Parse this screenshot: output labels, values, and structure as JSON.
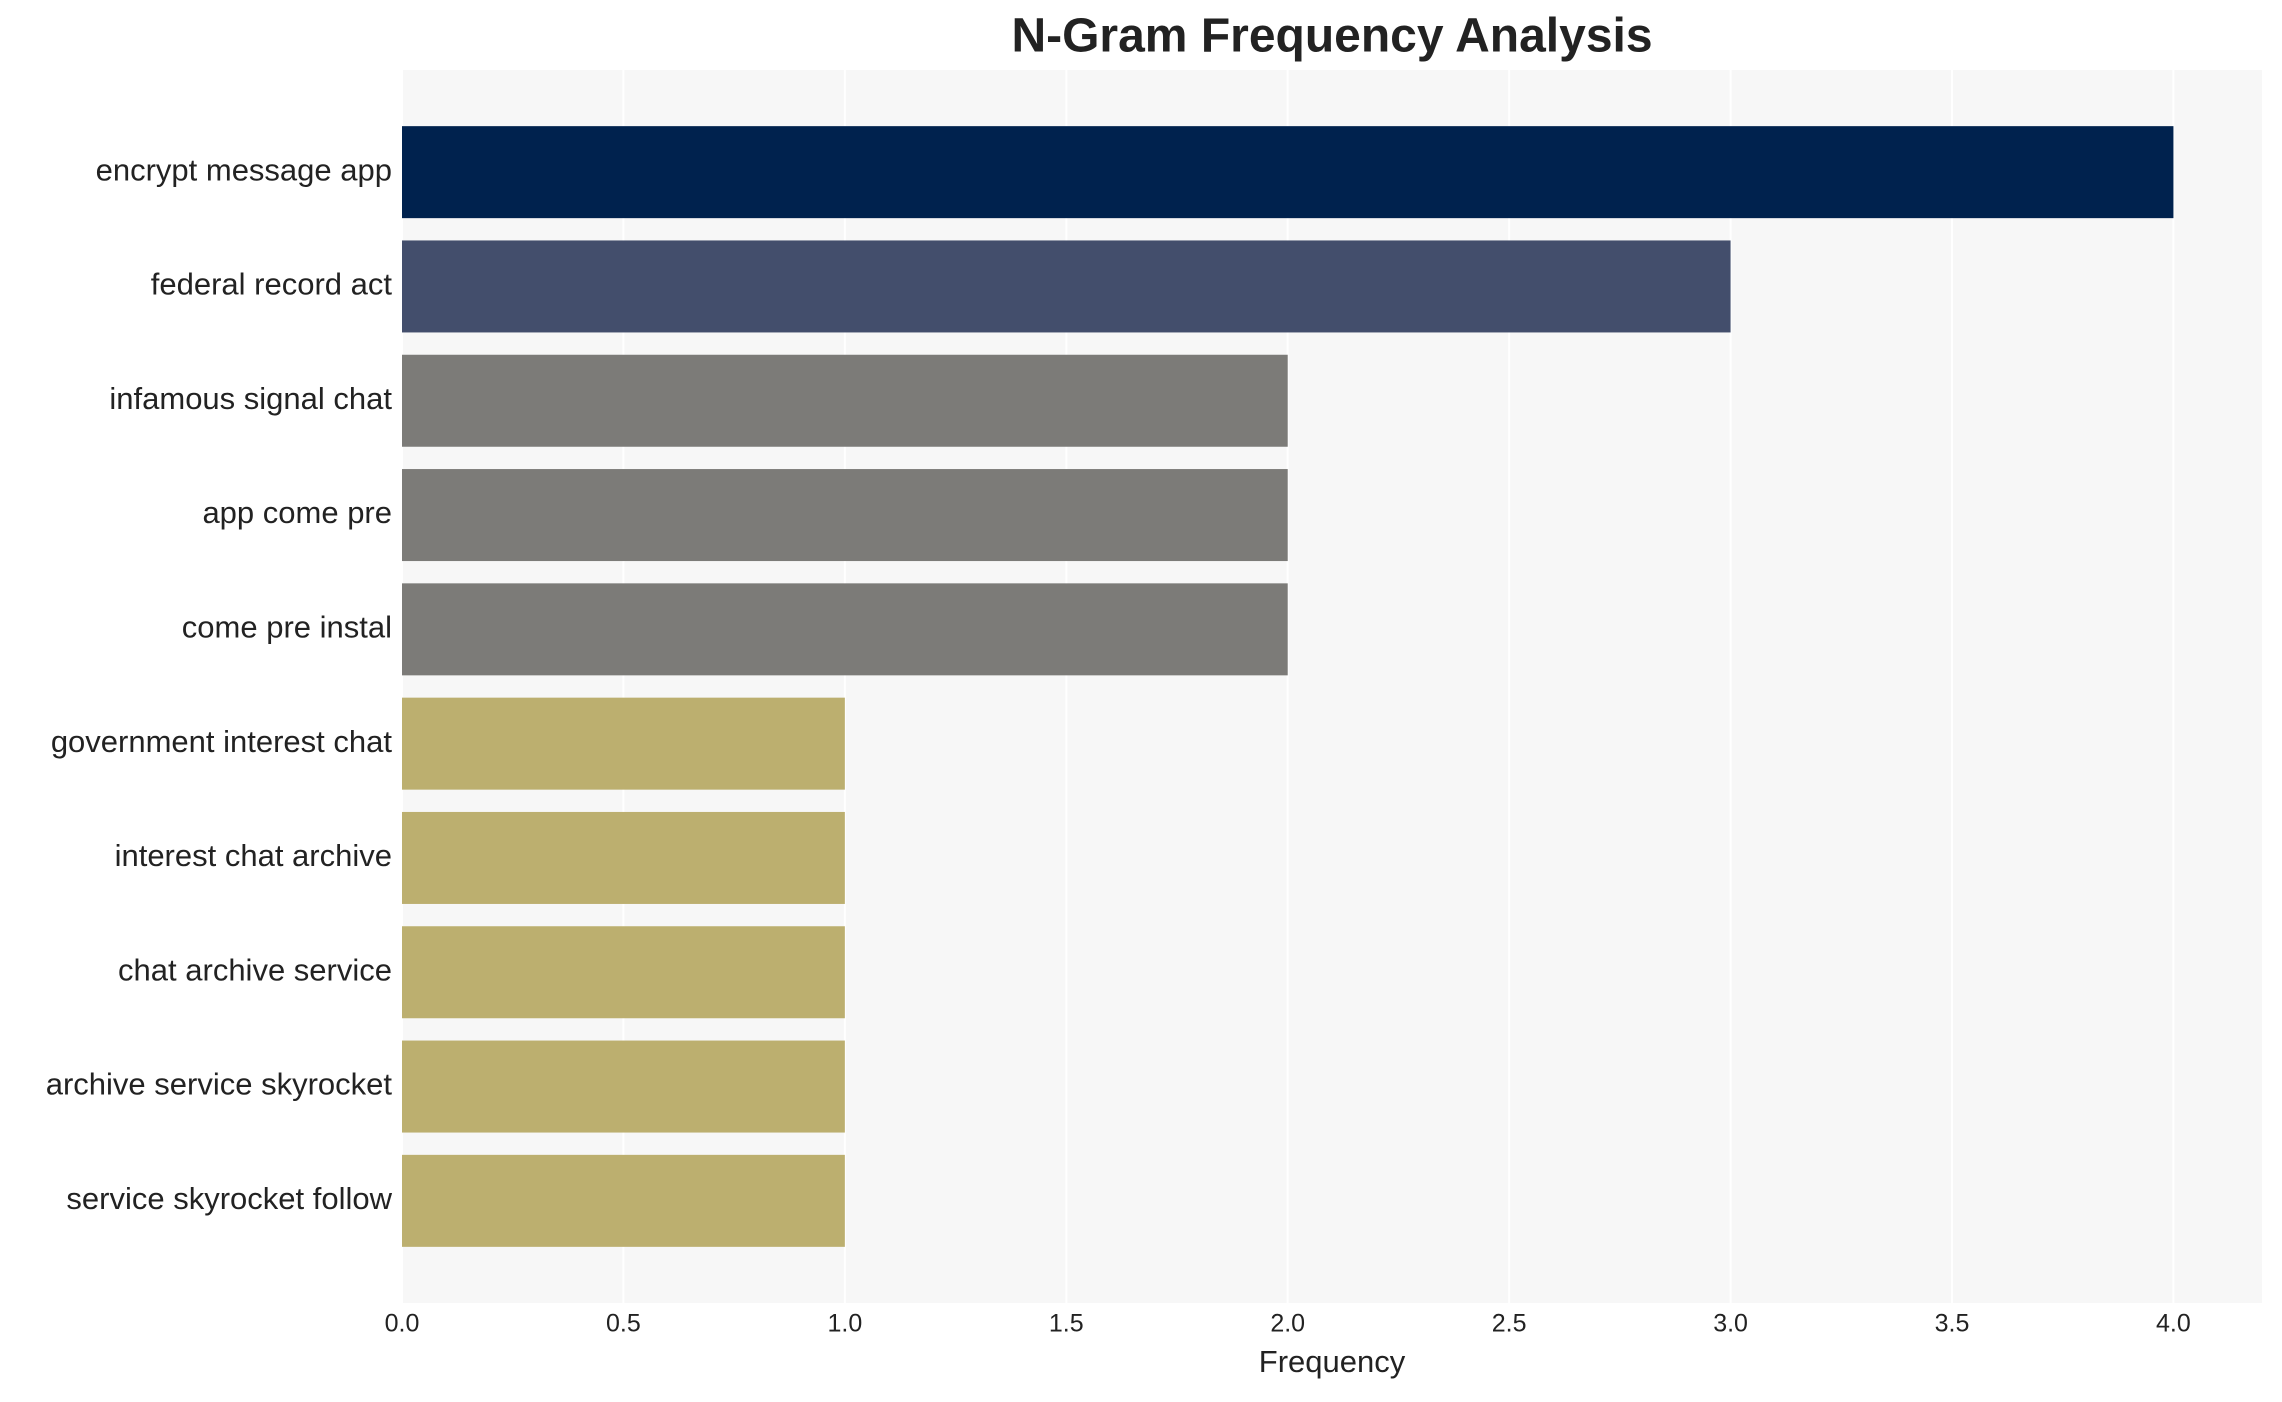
{
  "chart_data": {
    "type": "bar",
    "orientation": "horizontal",
    "title": "N-Gram Frequency Analysis",
    "x_label": "Frequency",
    "categories": [
      "encrypt message app",
      "federal record act",
      "infamous signal chat",
      "app come pre",
      "come pre instal",
      "government interest chat",
      "interest chat archive",
      "chat archive service",
      "archive service skyrocket",
      "service skyrocket follow"
    ],
    "values": [
      4,
      3,
      2,
      2,
      2,
      1,
      1,
      1,
      1,
      1
    ],
    "colors": [
      "#00224e",
      "#434e6c",
      "#7c7b78",
      "#7c7b78",
      "#7c7b78",
      "#bcaf6f",
      "#bcaf6f",
      "#bcaf6f",
      "#bcaf6f",
      "#bcaf6f"
    ],
    "xlim": [
      0,
      4.2
    ],
    "xticks": [
      {
        "value": 0,
        "label": "0.0"
      },
      {
        "value": 0.5,
        "label": "0.5"
      },
      {
        "value": 1,
        "label": "1.0"
      },
      {
        "value": 1.5,
        "label": "1.5"
      },
      {
        "value": 2,
        "label": "2.0"
      },
      {
        "value": 2.5,
        "label": "2.5"
      },
      {
        "value": 3,
        "label": "3.0"
      },
      {
        "value": 3.5,
        "label": "3.5"
      },
      {
        "value": 4,
        "label": "4.0"
      }
    ],
    "grid": true
  }
}
